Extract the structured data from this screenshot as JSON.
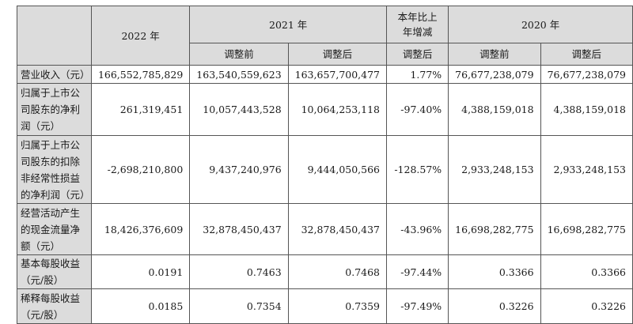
{
  "headers": {
    "year_2022": "2022 年",
    "year_2021": "2021 年",
    "yoy_change": "本年比上年增减",
    "year_2020": "2020 年",
    "before_adjust": "调整前",
    "after_adjust": "调整后"
  },
  "rows": [
    {
      "label": "营业收入（元）",
      "v2022": "166,552,785,829",
      "v2021_before": "163,540,559,623",
      "v2021_after": "163,657,700,477",
      "change": "1.77%",
      "v2020_before": "76,677,238,079",
      "v2020_after": "76,677,238,079"
    },
    {
      "label": "归属于上市公司股东的净利润（元）",
      "v2022": "261,319,451",
      "v2021_before": "10,057,443,528",
      "v2021_after": "10,064,253,118",
      "change": "-97.40%",
      "v2020_before": "4,388,159,018",
      "v2020_after": "4,388,159,018"
    },
    {
      "label": "归属于上市公司股东的扣除非经常性损益的净利润（元）",
      "v2022": "-2,698,210,800",
      "v2021_before": "9,437,240,976",
      "v2021_after": "9,444,050,566",
      "change": "-128.57%",
      "v2020_before": "2,933,248,153",
      "v2020_after": "2,933,248,153"
    },
    {
      "label": "经营活动产生的现金流量净额（元）",
      "v2022": "18,426,376,609",
      "v2021_before": "32,878,450,437",
      "v2021_after": "32,878,450,437",
      "change": "-43.96%",
      "v2020_before": "16,698,282,775",
      "v2020_after": "16,698,282,775"
    },
    {
      "label": "基本每股收益（元/股）",
      "v2022": "0.0191",
      "v2021_before": "0.7463",
      "v2021_after": "0.7468",
      "change": "-97.44%",
      "v2020_before": "0.3366",
      "v2020_after": "0.3366"
    },
    {
      "label": "稀释每股收益（元/股）",
      "v2022": "0.0185",
      "v2021_before": "0.7354",
      "v2021_after": "0.7359",
      "change": "-97.49%",
      "v2020_before": "0.3226",
      "v2020_after": "0.3226"
    }
  ]
}
